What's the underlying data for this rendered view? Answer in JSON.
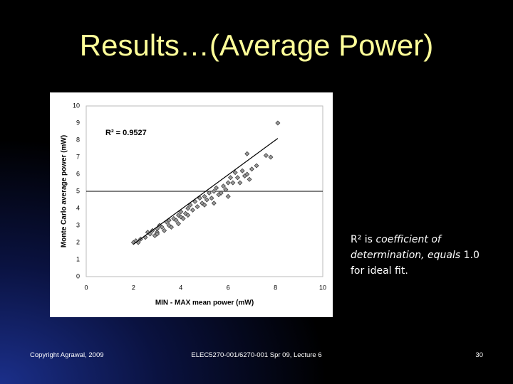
{
  "title": "Results…(Average Power)",
  "note": [
    "R² is ",
    "coefficient of determination, equals ",
    "1.0 for ideal fit."
  ],
  "footer": {
    "left": "Copyright Agrawal, 2009",
    "center": "ELEC5270-001/6270-001 Spr 09, Lecture 6",
    "right": "30"
  },
  "chart_data": {
    "type": "scatter",
    "annotation": "R² = 0.9527",
    "x_label": "MIN - MAX mean power (mW)",
    "y_label": "Monte Carlo average power (mW)",
    "xlim": [
      0,
      10
    ],
    "ylim": [
      0,
      10
    ],
    "xticks": [
      0,
      2,
      4,
      6,
      8,
      10
    ],
    "yticks": [
      0,
      1,
      2,
      3,
      4,
      5,
      6,
      7,
      8,
      9,
      10
    ],
    "grid": false,
    "color": "#999999",
    "reference_line_y": 5,
    "trendline": {
      "x": [
        2.0,
        8.1
      ],
      "y": [
        1.9,
        8.1
      ]
    },
    "x": [
      2.0,
      2.1,
      2.2,
      2.3,
      2.5,
      2.6,
      2.7,
      2.8,
      2.9,
      3.0,
      3.0,
      3.1,
      3.2,
      3.3,
      3.4,
      3.5,
      3.5,
      3.6,
      3.7,
      3.8,
      3.9,
      3.9,
      4.0,
      4.0,
      4.1,
      4.2,
      4.3,
      4.3,
      4.4,
      4.5,
      4.6,
      4.7,
      4.8,
      4.9,
      5.0,
      5.0,
      5.1,
      5.2,
      5.3,
      5.4,
      5.4,
      5.5,
      5.6,
      5.7,
      5.8,
      5.9,
      6.0,
      6.0,
      6.1,
      6.2,
      6.3,
      6.4,
      6.5,
      6.6,
      6.7,
      6.8,
      6.9,
      7.0,
      7.2,
      7.6,
      7.8,
      8.1,
      6.8,
      3.0
    ],
    "y": [
      2.0,
      2.1,
      2.0,
      2.2,
      2.3,
      2.6,
      2.5,
      2.7,
      2.4,
      2.8,
      2.6,
      3.0,
      2.9,
      2.7,
      3.2,
      3.0,
      3.3,
      2.9,
      3.4,
      3.3,
      3.6,
      3.1,
      3.5,
      3.8,
      3.4,
      3.7,
      4.0,
      3.6,
      4.2,
      3.9,
      4.4,
      4.1,
      4.6,
      4.3,
      4.7,
      4.2,
      4.5,
      4.9,
      4.6,
      5.0,
      4.3,
      5.2,
      4.8,
      4.9,
      5.3,
      5.1,
      5.5,
      4.7,
      5.8,
      5.5,
      6.1,
      5.8,
      5.5,
      6.2,
      5.9,
      6.0,
      5.7,
      6.3,
      6.5,
      7.1,
      7.0,
      9.0,
      7.2,
      2.5
    ]
  }
}
